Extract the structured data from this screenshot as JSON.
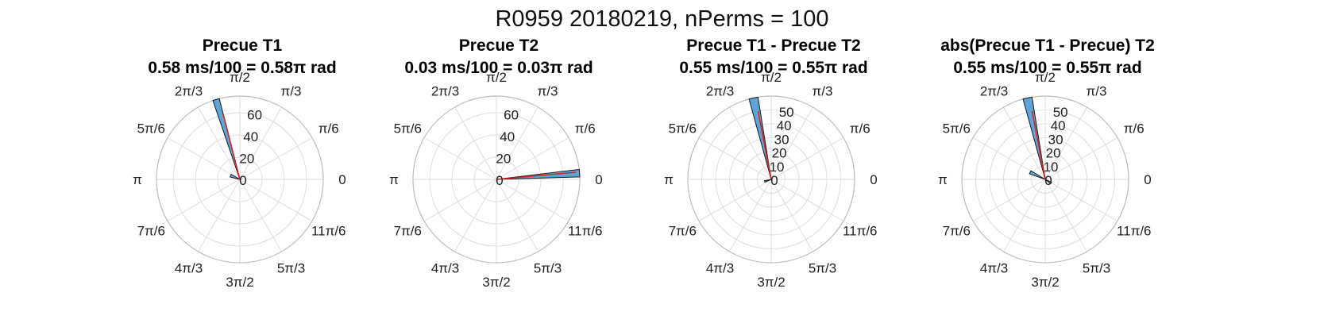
{
  "figure": {
    "title": "R0959 20180219, nPerms = 100"
  },
  "angle_labels": [
    "0",
    "π/6",
    "π/3",
    "π/2",
    "2π/3",
    "5π/6",
    "π",
    "7π/6",
    "4π/3",
    "3π/2",
    "5π/3",
    "11π/6"
  ],
  "colors": {
    "bar_fill": "#5fa4d6",
    "bar_edge": "#1a1a1a",
    "mean_vector": "#d42020",
    "grid": "#dedede",
    "outer_ring": "#bdbdbd"
  },
  "chart_data": [
    {
      "type": "polar-histogram",
      "title": "Precue T1",
      "subtitle": "0.58 ms/100 = 0.58π rad",
      "rlim": [
        0,
        75
      ],
      "rticks": [
        0,
        20,
        40,
        60
      ],
      "bins": [
        {
          "theta_start": 1.82,
          "theta_end": 1.9,
          "count": 75
        },
        {
          "theta_start": 2.6,
          "theta_end": 2.9,
          "count": 9
        }
      ],
      "mean_vector": {
        "theta": 1.82,
        "r": 60
      }
    },
    {
      "type": "polar-histogram",
      "title": "Precue T2",
      "subtitle": "0.03 ms/100 = 0.03π rad",
      "rlim": [
        0,
        75
      ],
      "rticks": [
        0,
        20,
        40,
        60
      ],
      "bins": [
        {
          "theta_start": 0.03,
          "theta_end": 0.12,
          "count": 75
        }
      ],
      "mean_vector": {
        "theta": 0.09,
        "r": 72
      }
    },
    {
      "type": "polar-histogram",
      "title": "Precue T1 - Precue T2",
      "subtitle": "0.55 ms/100 = 0.55π rad",
      "rlim": [
        0,
        60
      ],
      "rticks": [
        0,
        10,
        20,
        30,
        40,
        50
      ],
      "bins": [
        {
          "theta_start": 1.73,
          "theta_end": 1.84,
          "count": 60
        },
        {
          "theta_start": 3.35,
          "theta_end": 3.55,
          "count": 5
        }
      ],
      "mean_vector": {
        "theta": 1.76,
        "r": 50
      }
    },
    {
      "type": "polar-histogram",
      "title": "abs(Precue T1 - Precue) T2",
      "subtitle": "0.55 ms/100 = 0.55π rad",
      "rlim": [
        0,
        60
      ],
      "rticks": [
        0,
        10,
        20,
        30,
        40,
        50
      ],
      "bins": [
        {
          "theta_start": 1.73,
          "theta_end": 1.84,
          "count": 60
        },
        {
          "theta_start": 2.6,
          "theta_end": 2.8,
          "count": 12
        },
        {
          "theta_start": 5.6,
          "theta_end": 5.85,
          "count": 5
        }
      ],
      "mean_vector": {
        "theta": 1.76,
        "r": 50
      }
    }
  ]
}
